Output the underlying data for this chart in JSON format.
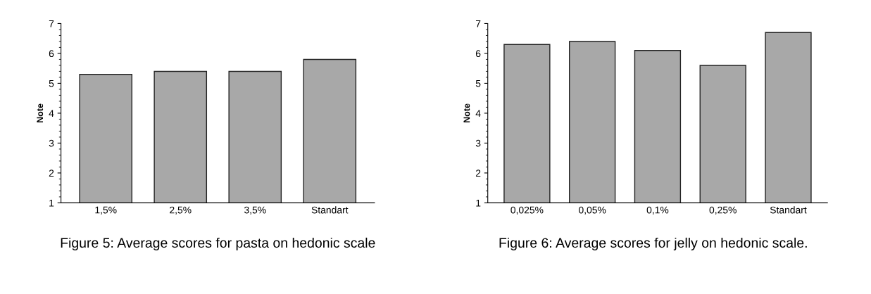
{
  "chart_data": [
    {
      "type": "bar",
      "ylabel": "Note",
      "categories": [
        "1,5%",
        "2,5%",
        "3,5%",
        "Standart"
      ],
      "values": [
        5.3,
        5.4,
        5.4,
        5.8
      ],
      "color": "#a8a8a8",
      "ylim": [
        1,
        7
      ],
      "yticks": [
        1,
        2,
        3,
        4,
        5,
        6,
        7
      ],
      "grid": false,
      "annotations": [
        "Figure 5: Average scores for pasta on hedonic scale"
      ]
    },
    {
      "type": "bar",
      "ylabel": "Note",
      "categories": [
        "0,025%",
        "0,05%",
        "0,1%",
        "0,25%",
        "Standart"
      ],
      "values": [
        6.3,
        6.4,
        6.1,
        5.6,
        6.7
      ],
      "color": "#a8a8a8",
      "ylim": [
        1,
        7
      ],
      "yticks": [
        1,
        2,
        3,
        4,
        5,
        6,
        7
      ],
      "grid": false,
      "annotations": [
        "Figure 6: Average scores for jelly on hedonic scale."
      ]
    }
  ]
}
